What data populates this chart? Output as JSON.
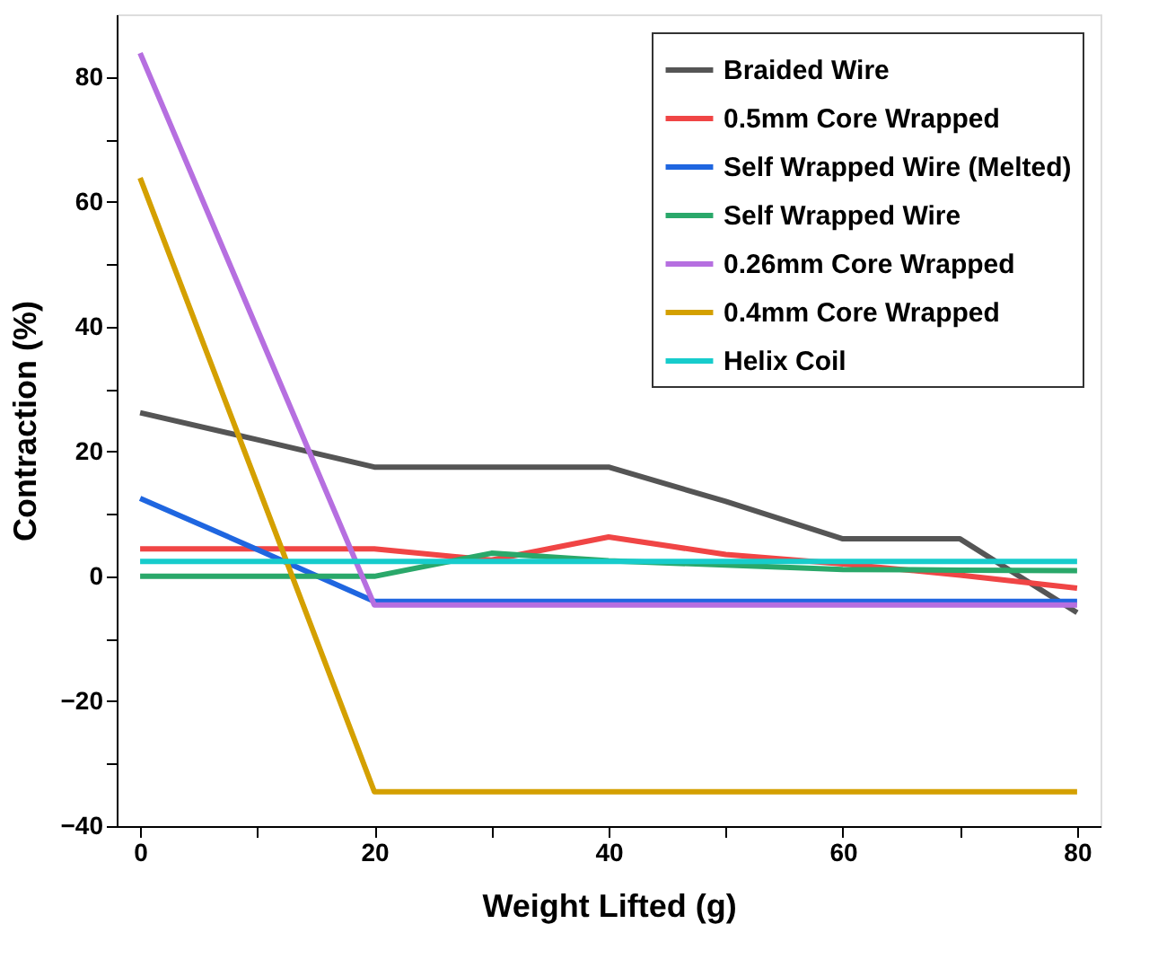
{
  "chart_data": {
    "type": "line",
    "xlabel": "Weight Lifted (g)",
    "ylabel": "Contraction (%)",
    "x": [
      0,
      10,
      20,
      30,
      40,
      50,
      60,
      70,
      80
    ],
    "series": [
      {
        "name": "Braided Wire",
        "color": "#555555",
        "values": [
          26.2,
          21.9,
          17.5,
          17.5,
          17.5,
          12.0,
          6.0,
          6.0,
          -5.8
        ]
      },
      {
        "name": "0.5mm Core Wrapped",
        "color": "#f04545",
        "values": [
          4.4,
          4.4,
          4.4,
          2.6,
          6.3,
          3.5,
          2.0,
          0.2,
          -1.9
        ]
      },
      {
        "name": "Self Wrapped Wire (Melted)",
        "color": "#1f66e0",
        "values": [
          12.5,
          4.3,
          -4.0,
          -4.0,
          -4.0,
          -4.0,
          -4.0,
          -4.0,
          -4.0
        ]
      },
      {
        "name": "Self Wrapped Wire",
        "color": "#2aa86a",
        "values": [
          0.0,
          0.0,
          0.0,
          3.7,
          2.5,
          1.8,
          1.1,
          1.0,
          0.9
        ]
      },
      {
        "name": "0.26mm Core Wrapped",
        "color": "#b66fe0",
        "values": [
          83.8,
          39.6,
          -4.6,
          -4.6,
          -4.6,
          -4.6,
          -4.6,
          -4.6,
          -4.6
        ]
      },
      {
        "name": "0.4mm Core Wrapped",
        "color": "#d4a000",
        "values": [
          63.8,
          14.7,
          -34.5,
          -34.5,
          -34.5,
          -34.5,
          -34.5,
          -34.5,
          -34.5
        ]
      },
      {
        "name": "Helix Coil",
        "color": "#17cccc",
        "values": [
          2.4,
          2.4,
          2.4,
          2.4,
          2.4,
          2.4,
          2.4,
          2.4,
          2.4
        ]
      }
    ],
    "xlim": [
      -2,
      82
    ],
    "ylim": [
      -40,
      90
    ],
    "xticks": [
      0,
      {
        "value": 10,
        "label": null
      },
      20,
      {
        "value": 30,
        "label": null
      },
      40,
      {
        "value": 50,
        "label": null
      },
      60,
      {
        "value": 70,
        "label": null
      },
      80
    ],
    "yticks": [
      -40,
      {
        "value": -30,
        "label": null
      },
      -20,
      {
        "value": -10,
        "label": null
      },
      0,
      {
        "value": 10,
        "label": null
      },
      20,
      {
        "value": 30,
        "label": null
      },
      40,
      {
        "value": 50,
        "label": null
      },
      60,
      {
        "value": 70,
        "label": null
      },
      80
    ],
    "legend": "top right",
    "grid": false,
    "marker": "none",
    "line_style": "solid"
  }
}
